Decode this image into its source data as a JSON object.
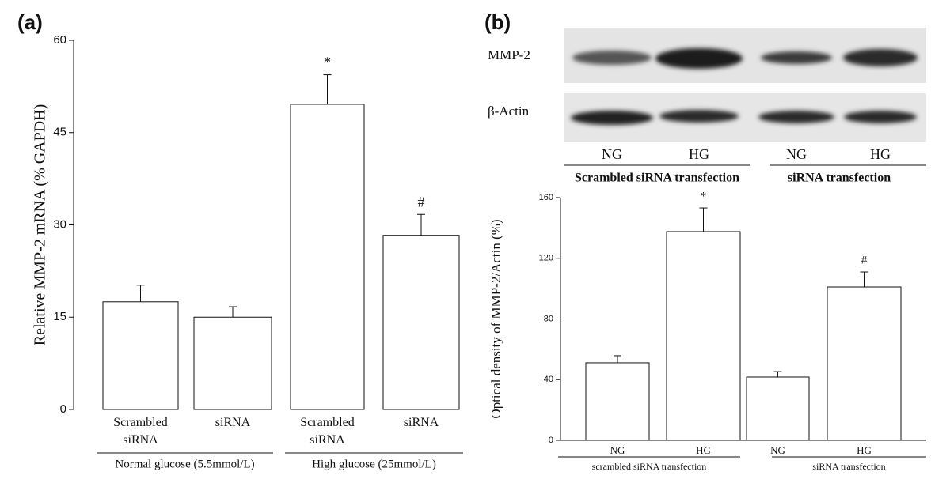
{
  "chart_data": [
    {
      "type": "bar",
      "panel_label": "(a)",
      "y_label": "Relative MMP-2 mRNA (% GAPDH)",
      "categories": [
        "Scrambled siRNA",
        "siRNA",
        "Scrambled siRNA",
        "siRNA"
      ],
      "groups": [
        "Normal glucose (5.5mmol/L)",
        "High glucose (25mmol/L)"
      ],
      "values": [
        17.5,
        15.0,
        49.6,
        28.3
      ],
      "error": [
        2.7,
        1.7,
        4.8,
        3.4
      ],
      "significance": [
        null,
        null,
        "*",
        "#"
      ],
      "color": "#ffffff",
      "ylim": [
        0,
        60
      ],
      "yticks": [
        0,
        15,
        30,
        45,
        60
      ]
    },
    {
      "type": "bar",
      "y_label": "Optical density of MMP-2/Actin (%)",
      "categories": [
        "NG",
        "HG",
        "NG",
        "HG"
      ],
      "groups": [
        "scrambled siRNA transfection",
        "siRNA transfection"
      ],
      "values": [
        51.1,
        137.6,
        41.7,
        101.1
      ],
      "error": [
        4.7,
        15.6,
        3.6,
        9.9
      ],
      "significance": [
        null,
        "*",
        null,
        "#"
      ],
      "color": "#ffffff",
      "ylim": [
        0,
        160
      ],
      "yticks": [
        0,
        40,
        80,
        120,
        160
      ]
    }
  ],
  "blot": {
    "panel_label": "(b)",
    "rows": [
      "MMP-2",
      "β-Actin"
    ],
    "lanes": [
      "NG",
      "HG",
      "NG",
      "HG"
    ],
    "groups": [
      "Scrambled siRNA transfection",
      "siRNA transfection"
    ]
  }
}
